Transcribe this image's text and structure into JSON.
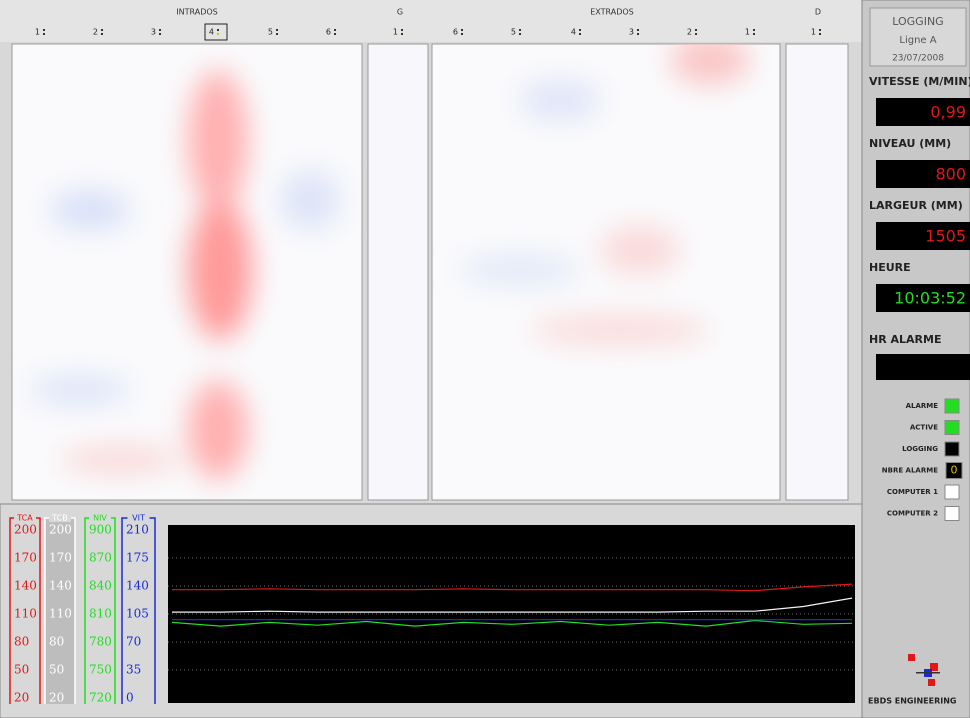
{
  "header": {
    "groups": [
      {
        "label": "INTRADOS",
        "x": 0
      },
      {
        "label": "G",
        "x": 1
      },
      {
        "label": "EXTRADOS",
        "x": 2
      },
      {
        "label": "D",
        "x": 3
      }
    ],
    "columns": [
      "1",
      "2",
      "3",
      "4",
      "5",
      "6",
      "1",
      "6",
      "5",
      "4",
      "3",
      "2",
      "1",
      "1"
    ],
    "selected_column": 3
  },
  "trends": {
    "axes": [
      {
        "label": "TCA",
        "color": "#e01818",
        "lim": [
          20,
          200
        ],
        "ticks": [
          200,
          170,
          140,
          110,
          80,
          50,
          20
        ],
        "values": [
          136,
          136,
          137,
          136,
          136,
          136,
          137,
          136,
          136,
          136,
          136,
          136,
          135,
          139,
          142
        ]
      },
      {
        "label": "TCB",
        "color": "#f4f4f4",
        "lim": [
          20,
          200
        ],
        "ticks": [
          200,
          170,
          140,
          110,
          80,
          50,
          20
        ],
        "values": [
          112,
          112,
          113,
          112,
          112,
          112,
          112,
          112,
          112,
          112,
          112,
          113,
          113,
          118,
          127
        ]
      },
      {
        "label": "NIV",
        "color": "#22dd22",
        "lim": [
          720,
          900
        ],
        "ticks": [
          900,
          870,
          840,
          810,
          780,
          750,
          720
        ],
        "values": [
          801,
          797,
          801,
          798,
          802,
          797,
          801,
          799,
          802,
          798,
          801,
          797,
          803,
          799,
          800
        ]
      },
      {
        "label": "VIT",
        "color": "#1a2ad8",
        "lim": [
          0,
          210
        ],
        "ticks": [
          210,
          175,
          140,
          105,
          70,
          35,
          0
        ],
        "values": [
          98,
          98,
          98,
          98,
          98,
          98,
          98,
          98,
          98,
          98,
          98,
          98,
          98,
          98,
          98
        ]
      }
    ]
  },
  "status": {
    "title": "LOGGING",
    "line": "Ligne A",
    "date": "23/07/2008",
    "readouts": [
      {
        "label": "VITESSE (M/MIN)",
        "value": "0,99",
        "color": "#e01818"
      },
      {
        "label": "NIVEAU (MM)",
        "value": "800",
        "color": "#e01818"
      },
      {
        "label": "LARGEUR (MM)",
        "value": "1505",
        "color": "#e01818"
      },
      {
        "label": "HEURE",
        "value": "10:03:52",
        "color": "#22dd22"
      }
    ],
    "alarm_time": {
      "label": "HR ALARME"
    },
    "indicators": [
      {
        "label": "ALARME",
        "color": "#22dd22"
      },
      {
        "label": "ACTIVE",
        "color": "#22dd22"
      },
      {
        "label": "LOGGING",
        "color": "#000000"
      },
      {
        "label": "NBRE ALARME",
        "value": "0"
      },
      {
        "label": "COMPUTER 1",
        "color": "#ffffff"
      },
      {
        "label": "COMPUTER 2",
        "color": "#ffffff"
      }
    ],
    "company": "EBDS ENGINEERING"
  }
}
